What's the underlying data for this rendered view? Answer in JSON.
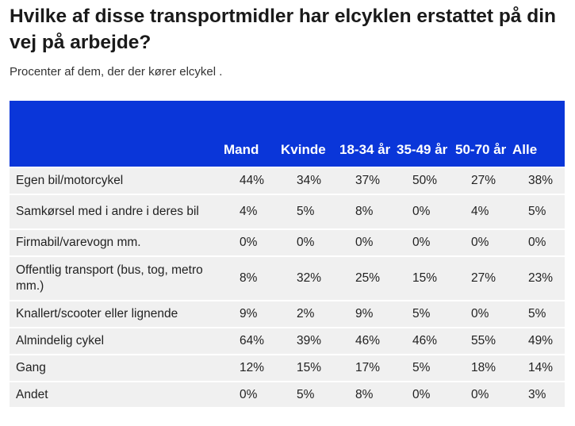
{
  "title": "Hvilke af disse transportmidler har elcyklen erstattet på din vej på arbejde?",
  "subtitle": "Procenter af dem, der der kører elcykel .",
  "chart_data": {
    "type": "table",
    "columns": [
      "",
      "Mand",
      "Kvinde",
      "18-34 år",
      "35-49 år",
      "50-70 år",
      "Alle"
    ],
    "rows": [
      {
        "label": "Egen bil/motorcykel",
        "values": [
          "44%",
          "34%",
          "37%",
          "50%",
          "27%",
          "38%"
        ]
      },
      {
        "label": "Samkørsel med i andre i deres bil",
        "values": [
          "4%",
          "5%",
          "8%",
          "0%",
          "4%",
          "5%"
        ]
      },
      {
        "label": "Firmabil/varevogn mm.",
        "values": [
          "0%",
          "0%",
          "0%",
          "0%",
          "0%",
          "0%"
        ]
      },
      {
        "label": "Offentlig transport (bus, tog, metro mm.)",
        "values": [
          "8%",
          "32%",
          "25%",
          "15%",
          "27%",
          "23%"
        ]
      },
      {
        "label": "Knallert/scooter eller lignende",
        "values": [
          "9%",
          "2%",
          "9%",
          "5%",
          "0%",
          "5%"
        ]
      },
      {
        "label": "Almindelig cykel",
        "values": [
          "64%",
          "39%",
          "46%",
          "46%",
          "55%",
          "49%"
        ]
      },
      {
        "label": "Gang",
        "values": [
          "12%",
          "15%",
          "17%",
          "5%",
          "18%",
          "14%"
        ]
      },
      {
        "label": "Andet",
        "values": [
          "0%",
          "5%",
          "8%",
          "0%",
          "0%",
          "3%"
        ]
      }
    ]
  },
  "colors": {
    "header_bg": "#0a36d9",
    "row_bg": "#f0f0f0",
    "header_text": "#ffffff"
  }
}
